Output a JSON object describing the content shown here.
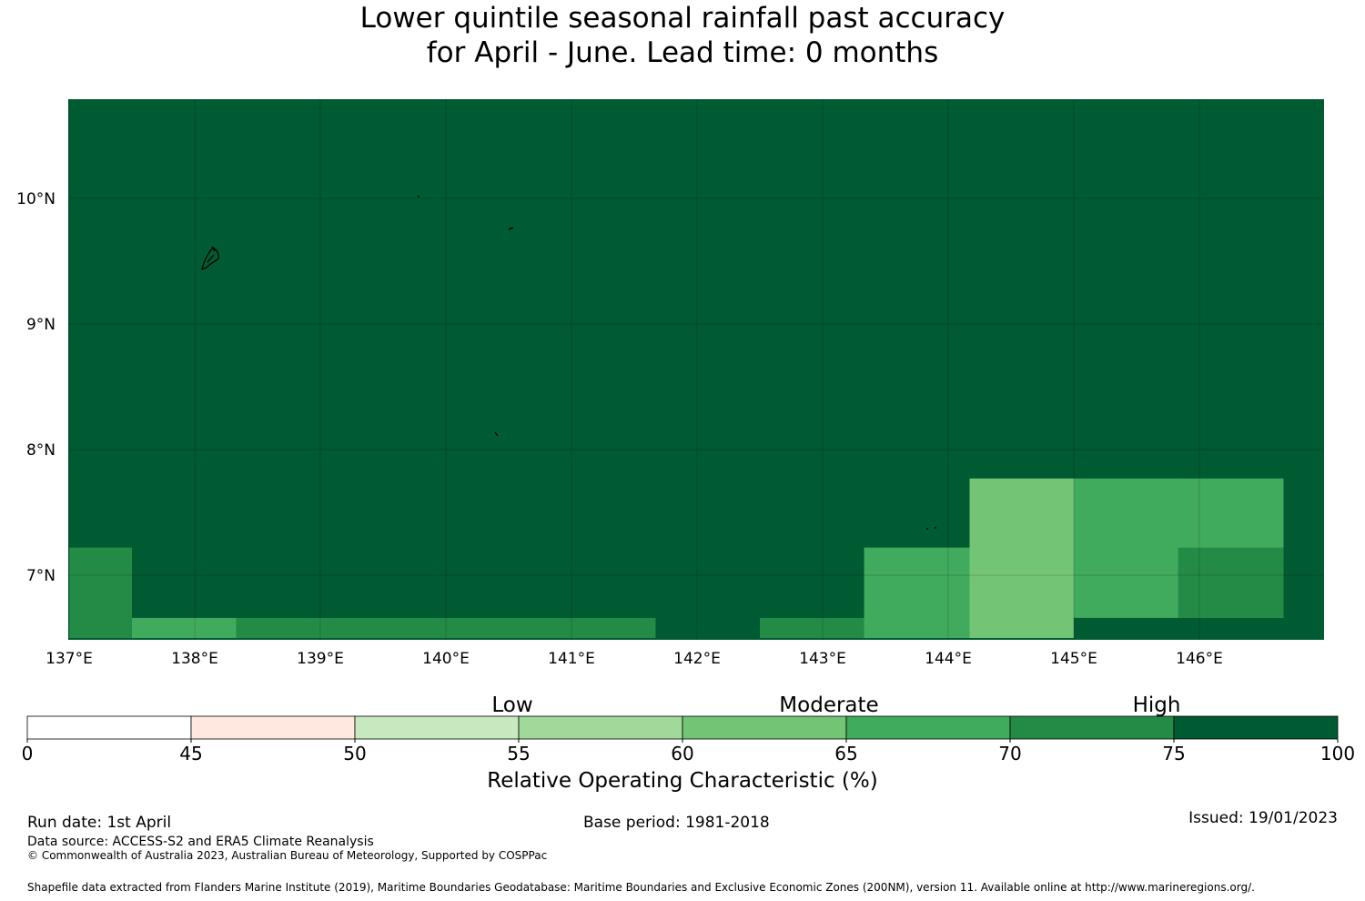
{
  "title": {
    "line1": "Lower quintile seasonal rainfall past accuracy",
    "line2": "for April - June. Lead time: 0 months"
  },
  "map": {
    "lon_ticks": [
      "137°E",
      "138°E",
      "139°E",
      "140°E",
      "141°E",
      "142°E",
      "143°E",
      "144°E",
      "145°E",
      "146°E"
    ],
    "lat_ticks": [
      "10°N",
      "9°N",
      "8°N",
      "7°N"
    ],
    "lon_values": [
      137,
      138,
      139,
      140,
      141,
      142,
      143,
      144,
      145,
      146
    ],
    "lat_values": [
      10,
      9,
      8,
      7
    ],
    "extent": {
      "lon_min": 137,
      "lon_max": 147,
      "lat_min": 6.5,
      "lat_max": 10.8
    },
    "background_color": "#005a32",
    "cells": [
      {
        "lon0": 137.0,
        "lon1": 137.5,
        "lat0": 6.5,
        "lat1": 7.22,
        "color": "#238b45"
      },
      {
        "lon0": 137.5,
        "lon1": 138.33,
        "lat0": 6.5,
        "lat1": 6.66,
        "color": "#41ab5d"
      },
      {
        "lon0": 138.33,
        "lon1": 141.67,
        "lat0": 6.5,
        "lat1": 6.66,
        "color": "#238b45"
      },
      {
        "lon0": 142.5,
        "lon1": 143.33,
        "lat0": 6.5,
        "lat1": 6.66,
        "color": "#238b45"
      },
      {
        "lon0": 143.33,
        "lon1": 144.17,
        "lat0": 6.5,
        "lat1": 7.22,
        "color": "#41ab5d"
      },
      {
        "lon0": 144.17,
        "lon1": 145.0,
        "lat0": 6.5,
        "lat1": 7.77,
        "color": "#74c476"
      },
      {
        "lon0": 145.0,
        "lon1": 146.67,
        "lat0": 6.66,
        "lat1": 7.77,
        "color": "#41ab5d"
      },
      {
        "lon0": 145.83,
        "lon1": 146.67,
        "lat0": 6.66,
        "lat1": 7.22,
        "color": "#238b45"
      }
    ]
  },
  "colorbar": {
    "ticks": [
      "0",
      "45",
      "50",
      "55",
      "60",
      "65",
      "70",
      "75",
      "100"
    ],
    "colors": [
      "#ffffff",
      "#fee8df",
      "#c7e9c0",
      "#a1d99b",
      "#74c476",
      "#41ab5d",
      "#238b45",
      "#005a32"
    ],
    "categories": [
      "Low",
      "Moderate",
      "High"
    ],
    "label": "Relative Operating Characteristic (%)"
  },
  "footer": {
    "run_date": "Run date: 1st April",
    "base_period": "Base period: 1981-2018",
    "issued": "Issued: 19/01/2023",
    "data_source": "Data source: ACCESS-S2 and ERA5 Climate Reanalysis",
    "copyright": "© Commonwealth of Australia 2023, Australian Bureau of Meteorology, Supported by COSPPac",
    "shapefile": "Shapefile data extracted from Flanders Marine Institute (2019), Maritime Boundaries Geodatabase: Maritime Boundaries and Exclusive Economic Zones (200NM), version 11. Available online at http://www.marineregions.org/."
  }
}
